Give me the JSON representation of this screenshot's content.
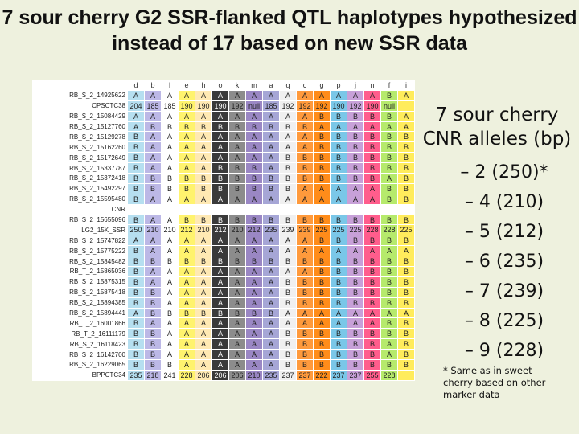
{
  "title": "7 sour cherry G2 SSR-flanked QTL haplotypes hypothesized instead of 17 based on new SSR data",
  "colors": {
    "A": "#b6dff0",
    "B": "#ffffff",
    "col_b": "#bcb8e6",
    "col_e": "#fff36e",
    "col_h": "#ffe9b3",
    "col_o": "#3a3a3a",
    "col_k": "#8c8c8c",
    "col_m": "#9a87c4",
    "col_a": "#a6a6d6",
    "col_q": "#f0f0f0",
    "col_c": "#ff9a3c",
    "col_g": "#ff8c1a",
    "col_p": "#7ac7e8",
    "col_j": "#c7a0d8",
    "col_n": "#ff5d8c",
    "col_f": "#b6ea6c",
    "col_i": "#ffec5c",
    "col_d": "#b6dff0"
  },
  "table": {
    "headers": [
      "d",
      "b",
      "l",
      "e",
      "h",
      "o",
      "k",
      "m",
      "a",
      "q",
      "c",
      "g",
      "p",
      "j",
      "n",
      "f",
      "i"
    ],
    "rows": [
      {
        "label": "RB_S_2_14925622",
        "cells": [
          "A",
          "A",
          "A",
          "A",
          "A",
          "A",
          "A",
          "A",
          "A",
          "A",
          "A",
          "A",
          "A",
          "A",
          "A",
          "B",
          "A"
        ]
      },
      {
        "label": "CPSCTC38",
        "cells": [
          "204",
          "185",
          "185",
          "190",
          "190",
          "190",
          "192",
          "null",
          "185",
          "192",
          "192",
          "192",
          "190",
          "192",
          "190",
          "null",
          ""
        ]
      },
      {
        "label": "RB_S_2_15084429",
        "cells": [
          "A",
          "A",
          "A",
          "A",
          "A",
          "A",
          "A",
          "A",
          "A",
          "A",
          "A",
          "B",
          "B",
          "B",
          "B",
          "B",
          "A"
        ]
      },
      {
        "label": "RB_S_2_15127760",
        "cells": [
          "A",
          "B",
          "B",
          "B",
          "B",
          "B",
          "B",
          "B",
          "B",
          "B",
          "B",
          "A",
          "A",
          "A",
          "A",
          "A",
          "A"
        ]
      },
      {
        "label": "RB_S_2_15129278",
        "cells": [
          "B",
          "A",
          "A",
          "A",
          "A",
          "A",
          "A",
          "A",
          "A",
          "A",
          "A",
          "B",
          "B",
          "B",
          "B",
          "B",
          "B"
        ]
      },
      {
        "label": "RB_S_2_15162260",
        "cells": [
          "B",
          "A",
          "A",
          "A",
          "A",
          "A",
          "A",
          "A",
          "A",
          "A",
          "A",
          "B",
          "B",
          "B",
          "B",
          "B",
          "B"
        ]
      },
      {
        "label": "RB_S_2_15172649",
        "cells": [
          "B",
          "A",
          "A",
          "A",
          "A",
          "A",
          "A",
          "A",
          "A",
          "B",
          "B",
          "B",
          "B",
          "B",
          "B",
          "B",
          "B"
        ]
      },
      {
        "label": "RB_S_2_15337787",
        "cells": [
          "B",
          "A",
          "A",
          "A",
          "A",
          "B",
          "B",
          "B",
          "A",
          "B",
          "B",
          "B",
          "B",
          "B",
          "B",
          "B",
          "B"
        ]
      },
      {
        "label": "RB_S_2_15372418",
        "cells": [
          "B",
          "B",
          "B",
          "B",
          "B",
          "B",
          "B",
          "B",
          "B",
          "B",
          "B",
          "B",
          "B",
          "B",
          "B",
          "A",
          "B"
        ]
      },
      {
        "label": "RB_S_2_15492297",
        "cells": [
          "B",
          "B",
          "B",
          "B",
          "B",
          "B",
          "B",
          "B",
          "B",
          "B",
          "A",
          "A",
          "A",
          "A",
          "A",
          "B",
          "B"
        ]
      },
      {
        "label": "RB_S_2_15595480",
        "cells": [
          "B",
          "A",
          "A",
          "A",
          "A",
          "A",
          "A",
          "A",
          "A",
          "A",
          "A",
          "A",
          "A",
          "A",
          "A",
          "B",
          "B"
        ]
      },
      {
        "label": "CNR",
        "cells": [
          "",
          "",
          "",
          "",
          "",
          "",
          "",
          "",
          "",
          "",
          "",
          "",
          "",
          "",
          "",
          "",
          ""
        ]
      },
      {
        "label": "RB_S_2_15655096",
        "cells": [
          "B",
          "A",
          "A",
          "B",
          "B",
          "B",
          "B",
          "B",
          "B",
          "B",
          "B",
          "B",
          "B",
          "B",
          "B",
          "B",
          "B"
        ]
      },
      {
        "label": "LG2_15K_SSR",
        "cells": [
          "250",
          "210",
          "210",
          "212",
          "210",
          "212",
          "210",
          "212",
          "235",
          "239",
          "239",
          "225",
          "225",
          "225",
          "228",
          "228",
          "225"
        ]
      },
      {
        "label": "RB_S_2_15747822",
        "cells": [
          "A",
          "A",
          "A",
          "A",
          "A",
          "A",
          "A",
          "A",
          "A",
          "A",
          "A",
          "B",
          "B",
          "B",
          "B",
          "B",
          "B"
        ]
      },
      {
        "label": "RB_S_2_15775222",
        "cells": [
          "B",
          "A",
          "A",
          "A",
          "A",
          "A",
          "A",
          "A",
          "A",
          "A",
          "A",
          "A",
          "A",
          "A",
          "A",
          "A",
          "A"
        ]
      },
      {
        "label": "RB_S_2_15845482",
        "cells": [
          "B",
          "B",
          "B",
          "B",
          "B",
          "B",
          "B",
          "B",
          "B",
          "B",
          "B",
          "B",
          "B",
          "B",
          "B",
          "B",
          "B"
        ]
      },
      {
        "label": "RB_T_2_15865036",
        "cells": [
          "B",
          "A",
          "A",
          "A",
          "A",
          "A",
          "A",
          "A",
          "A",
          "A",
          "A",
          "B",
          "B",
          "B",
          "B",
          "B",
          "B"
        ]
      },
      {
        "label": "RB_S_2_15875315",
        "cells": [
          "B",
          "A",
          "A",
          "A",
          "A",
          "A",
          "A",
          "A",
          "A",
          "B",
          "B",
          "B",
          "B",
          "B",
          "B",
          "B",
          "B"
        ]
      },
      {
        "label": "RB_S_2_15875418",
        "cells": [
          "B",
          "B",
          "A",
          "A",
          "A",
          "A",
          "A",
          "A",
          "A",
          "B",
          "B",
          "B",
          "B",
          "B",
          "B",
          "B",
          "B"
        ]
      },
      {
        "label": "RB_S_2_15894385",
        "cells": [
          "B",
          "B",
          "A",
          "A",
          "A",
          "A",
          "A",
          "A",
          "A",
          "B",
          "B",
          "B",
          "B",
          "B",
          "B",
          "B",
          "B"
        ]
      },
      {
        "label": "RB_S_2_15894441",
        "cells": [
          "A",
          "B",
          "B",
          "B",
          "B",
          "B",
          "B",
          "B",
          "B",
          "A",
          "A",
          "A",
          "A",
          "A",
          "A",
          "A",
          "A"
        ]
      },
      {
        "label": "RB_T_2_16001866",
        "cells": [
          "B",
          "A",
          "A",
          "A",
          "A",
          "A",
          "A",
          "A",
          "A",
          "A",
          "A",
          "A",
          "A",
          "A",
          "A",
          "B",
          "B"
        ]
      },
      {
        "label": "RB_T_2_16111179",
        "cells": [
          "B",
          "B",
          "A",
          "A",
          "A",
          "A",
          "A",
          "A",
          "A",
          "B",
          "B",
          "B",
          "B",
          "B",
          "B",
          "B",
          "B"
        ]
      },
      {
        "label": "RB_S_2_16118423",
        "cells": [
          "B",
          "B",
          "A",
          "A",
          "A",
          "A",
          "A",
          "A",
          "A",
          "B",
          "B",
          "B",
          "B",
          "B",
          "B",
          "A",
          "B"
        ]
      },
      {
        "label": "RB_S_2_16142700",
        "cells": [
          "B",
          "B",
          "A",
          "A",
          "A",
          "A",
          "A",
          "A",
          "A",
          "B",
          "B",
          "B",
          "B",
          "B",
          "B",
          "A",
          "B"
        ]
      },
      {
        "label": "RB_S_2_16229065",
        "cells": [
          "B",
          "B",
          "B",
          "A",
          "A",
          "A",
          "A",
          "A",
          "A",
          "B",
          "B",
          "B",
          "B",
          "B",
          "B",
          "B",
          "B"
        ]
      },
      {
        "label": "BPPCTC34",
        "cells": [
          "235",
          "218",
          "241",
          "228",
          "206",
          "206",
          "206",
          "210",
          "235",
          "237",
          "237",
          "222",
          "237",
          "237",
          "255",
          "228",
          ""
        ]
      }
    ]
  },
  "right_panel": {
    "heading_line1": "7 sour cherry",
    "heading_line2": "CNR alleles (bp)",
    "alleles": [
      "– 2 (250)*",
      "– 4 (210)",
      "– 5 (212)",
      "– 6 (235)",
      "– 7 (239)",
      "– 8 (225)",
      "– 9 (228)"
    ],
    "footnote_line1": "* Same as in sweet",
    "footnote_line2": "cherry based on other",
    "footnote_line3": "marker data"
  }
}
